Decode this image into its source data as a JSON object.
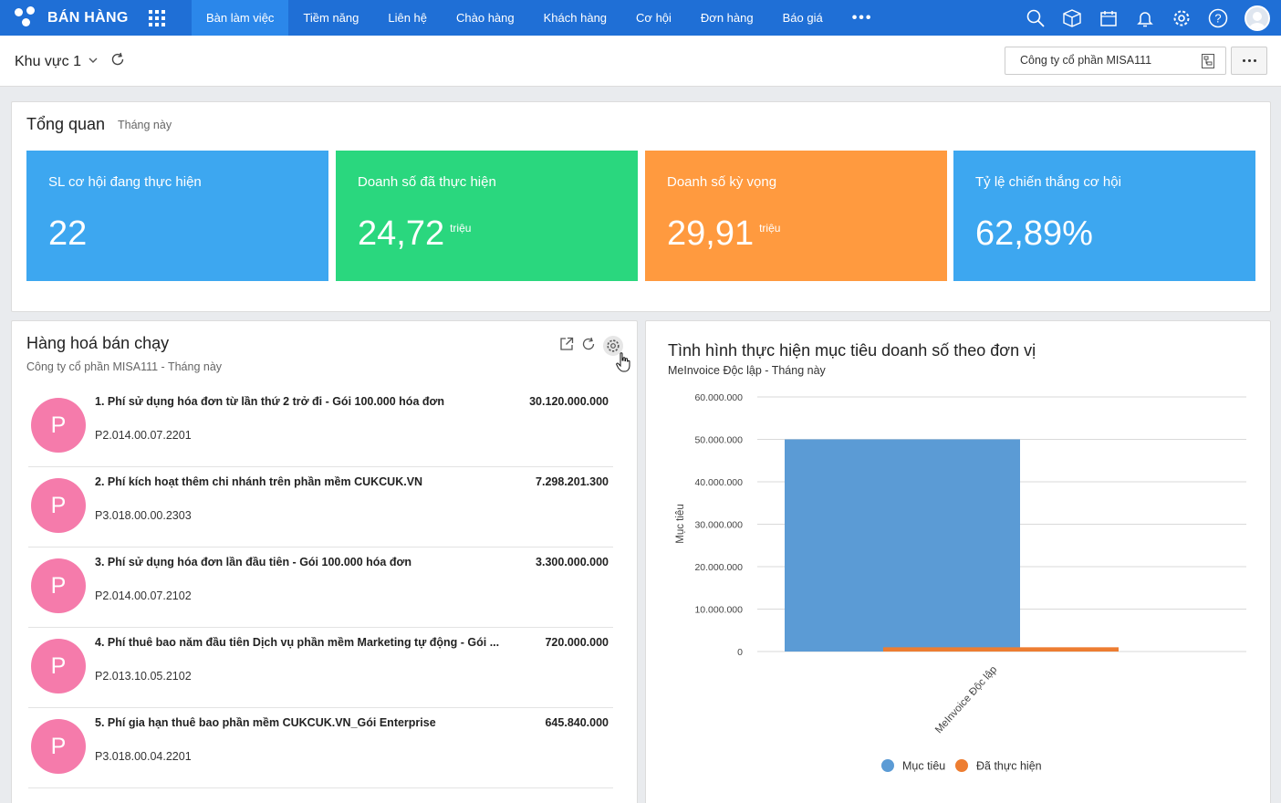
{
  "app": {
    "title": "BÁN HÀNG"
  },
  "nav": {
    "items": [
      "Bàn làm việc",
      "Tiềm năng",
      "Liên hệ",
      "Chào hàng",
      "Khách hàng",
      "Cơ hội",
      "Đơn hàng",
      "Báo giá"
    ],
    "more": "•••"
  },
  "header": {
    "region": "Khu vực 1",
    "company": "Công ty cổ phần MISA111"
  },
  "overview": {
    "title": "Tổng quan",
    "period": "Tháng này",
    "kpis": [
      {
        "label": "SL cơ hội đang thực hiện",
        "value": "22",
        "unit": "",
        "color": "#3da7f0"
      },
      {
        "label": "Doanh số đã thực hiện",
        "value": "24,72",
        "unit": "triệu",
        "color": "#2ad77e"
      },
      {
        "label": "Doanh số kỳ vọng",
        "value": "29,91",
        "unit": "triệu",
        "color": "#ff9a3f"
      },
      {
        "label": "Tỷ lệ chiến thắng cơ hội",
        "value": "62,89%",
        "unit": "",
        "color": "#3da7f0"
      }
    ]
  },
  "products": {
    "title": "Hàng hoá bán chạy",
    "subtitle": "Công ty cổ phần MISA111 - Tháng này",
    "items": [
      {
        "initial": "P",
        "name": "1. Phí sử dụng hóa đơn từ lần thứ 2 trở đi - Gói 100.000 hóa đơn",
        "amount": "30.120.000.000",
        "code": "P2.014.00.07.2201"
      },
      {
        "initial": "P",
        "name": "2. Phí kích hoạt thêm chi nhánh trên phần mềm CUKCUK.VN",
        "amount": "7.298.201.300",
        "code": "P3.018.00.00.2303"
      },
      {
        "initial": "P",
        "name": "3. Phí sử dụng hóa đơn lần đầu tiên - Gói 100.000 hóa đơn",
        "amount": "3.300.000.000",
        "code": "P2.014.00.07.2102"
      },
      {
        "initial": "P",
        "name": "4. Phí thuê bao năm đầu tiên Dịch vụ phần mềm Marketing tự động - Gói ...",
        "amount": "720.000.000",
        "code": "P2.013.10.05.2102"
      },
      {
        "initial": "P",
        "name": "5. Phí gia hạn thuê bao phần mềm CUKCUK.VN_Gói Enterprise",
        "amount": "645.840.000",
        "code": "P3.018.00.04.2201"
      }
    ]
  },
  "target_chart": {
    "title": "Tình hình thực hiện mục tiêu doanh số theo đơn vị",
    "subtitle": "MeInvoice Độc lập - Tháng này"
  },
  "chart_data": {
    "type": "bar",
    "categories": [
      "MeInvoice Độc lập"
    ],
    "series": [
      {
        "name": "Mục tiêu",
        "values": [
          50000000
        ],
        "color": "#5b9bd5"
      },
      {
        "name": "Đã thực hiện",
        "values": [
          1000000
        ],
        "color": "#ed7d31"
      }
    ],
    "ylabel": "Mục tiêu",
    "ylim": [
      0,
      60000000
    ],
    "yticks": [
      "0",
      "10.000.000",
      "20.000.000",
      "30.000.000",
      "40.000.000",
      "50.000.000",
      "60.000.000"
    ],
    "grid": true,
    "legend": "bottom"
  }
}
